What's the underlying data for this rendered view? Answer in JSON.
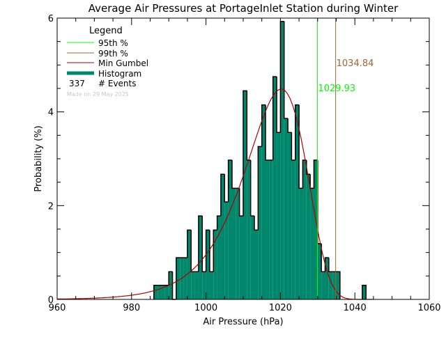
{
  "chart_data": {
    "type": "bar",
    "title": "Average Air Pressures at PortageInlet Station during Winter",
    "xlabel": "Air Pressure (hPa)",
    "ylabel": "Probability (%)",
    "xlim": [
      960,
      1060
    ],
    "ylim": [
      0,
      6
    ],
    "xticks": [
      "960",
      "980",
      "1000",
      "1020",
      "1040",
      "1060"
    ],
    "yticks": [
      "0",
      "2",
      "4",
      "6"
    ],
    "bin_width": 1,
    "bins": [
      {
        "x": 986,
        "y": 0.3
      },
      {
        "x": 987,
        "y": 0.3
      },
      {
        "x": 988,
        "y": 0.3
      },
      {
        "x": 989,
        "y": 0.3
      },
      {
        "x": 990,
        "y": 0.59
      },
      {
        "x": 991,
        "y": 0
      },
      {
        "x": 992,
        "y": 0.89
      },
      {
        "x": 993,
        "y": 0.89
      },
      {
        "x": 994,
        "y": 0.89
      },
      {
        "x": 995,
        "y": 1.48
      },
      {
        "x": 996,
        "y": 0.59
      },
      {
        "x": 997,
        "y": 0.59
      },
      {
        "x": 998,
        "y": 1.78
      },
      {
        "x": 999,
        "y": 0.59
      },
      {
        "x": 1000,
        "y": 1.48
      },
      {
        "x": 1001,
        "y": 0.59
      },
      {
        "x": 1002,
        "y": 1.48
      },
      {
        "x": 1003,
        "y": 1.78
      },
      {
        "x": 1004,
        "y": 2.67
      },
      {
        "x": 1005,
        "y": 2.08
      },
      {
        "x": 1006,
        "y": 2.97
      },
      {
        "x": 1007,
        "y": 2.37
      },
      {
        "x": 1008,
        "y": 2.37
      },
      {
        "x": 1009,
        "y": 1.78
      },
      {
        "x": 1010,
        "y": 4.45
      },
      {
        "x": 1011,
        "y": 2.97
      },
      {
        "x": 1012,
        "y": 1.78
      },
      {
        "x": 1013,
        "y": 1.48
      },
      {
        "x": 1014,
        "y": 3.26
      },
      {
        "x": 1015,
        "y": 4.15
      },
      {
        "x": 1016,
        "y": 2.97
      },
      {
        "x": 1017,
        "y": 2.97
      },
      {
        "x": 1018,
        "y": 4.75
      },
      {
        "x": 1019,
        "y": 3.56
      },
      {
        "x": 1020,
        "y": 5.93
      },
      {
        "x": 1021,
        "y": 3.86
      },
      {
        "x": 1022,
        "y": 3.56
      },
      {
        "x": 1023,
        "y": 2.97
      },
      {
        "x": 1024,
        "y": 4.15
      },
      {
        "x": 1025,
        "y": 2.37
      },
      {
        "x": 1026,
        "y": 2.97
      },
      {
        "x": 1027,
        "y": 2.67
      },
      {
        "x": 1028,
        "y": 2.37
      },
      {
        "x": 1029,
        "y": 2.97
      },
      {
        "x": 1030,
        "y": 1.19
      },
      {
        "x": 1031,
        "y": 0.59
      },
      {
        "x": 1032,
        "y": 0.89
      },
      {
        "x": 1033,
        "y": 0.59
      },
      {
        "x": 1034,
        "y": 0.59
      },
      {
        "x": 1035,
        "y": 0.59
      },
      {
        "x": 1042,
        "y": 0.3
      }
    ],
    "gumbel_fit": {
      "mu": 1020.2,
      "beta": 8.2
    },
    "p95": {
      "value": 1029.93,
      "label": "1029.93",
      "color": "#00ff00"
    },
    "p99": {
      "value": 1034.84,
      "label": "1034.84",
      "color": "#a0662a"
    },
    "colors": {
      "histogram": "#00876c",
      "gumbel": "#b00000",
      "axes": "#000000"
    },
    "legend": {
      "title": "Legend",
      "placement": "top-left",
      "items": [
        {
          "label": "95th %",
          "color": "#00ff00"
        },
        {
          "label": "99th %",
          "color": "#a0662a"
        },
        {
          "label": "Min Gumbel",
          "color": "#b00000"
        },
        {
          "label": "Histogram",
          "color": "#00876c"
        }
      ],
      "events_count": "337",
      "events_label": "# Events",
      "made_on": "Made on 29 May 2025"
    }
  }
}
